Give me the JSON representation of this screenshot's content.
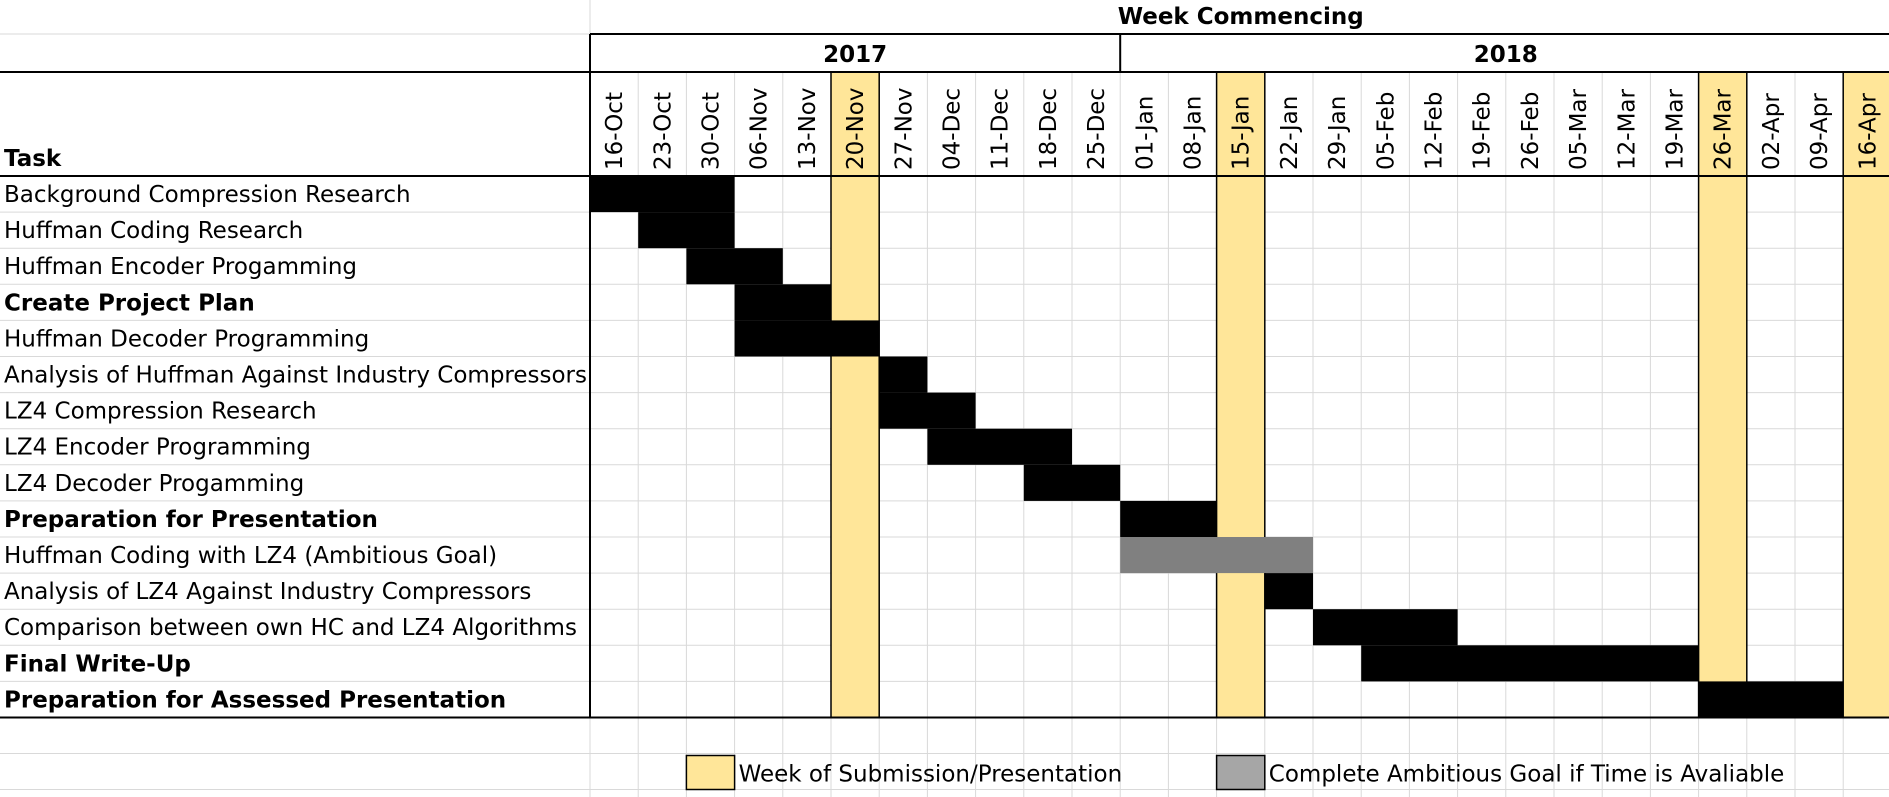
{
  "header": "Week Commencing",
  "task_header": "Task",
  "years": [
    {
      "label": "2017"
    },
    {
      "label": "2018"
    }
  ],
  "colors": {
    "task_bar": "#000000",
    "ambitious_bar": "#808080",
    "highlight": "#FFE699",
    "legend_ambitious": "#A6A6A6",
    "grid": "#d9d9d9"
  },
  "legend": [
    {
      "label": "Week of Submission/Presentation",
      "color": "#FFE699"
    },
    {
      "label": "Complete Ambitious Goal if Time is Avaliable",
      "color": "#A6A6A6"
    }
  ],
  "chart_data": {
    "type": "gantt",
    "weeks": [
      "16-Oct",
      "23-Oct",
      "30-Oct",
      "06-Nov",
      "13-Nov",
      "20-Nov",
      "27-Nov",
      "04-Dec",
      "11-Dec",
      "18-Dec",
      "25-Dec",
      "01-Jan",
      "08-Jan",
      "15-Jan",
      "22-Jan",
      "29-Jan",
      "05-Feb",
      "12-Feb",
      "19-Feb",
      "26-Feb",
      "05-Mar",
      "12-Mar",
      "19-Mar",
      "26-Mar",
      "02-Apr",
      "09-Apr",
      "16-Apr"
    ],
    "highlight_weeks": [
      "20-Nov",
      "15-Jan",
      "26-Mar",
      "16-Apr"
    ],
    "tasks": [
      {
        "name": "Background Compression Research",
        "start": "16-Oct",
        "end": "30-Oct",
        "bold": false,
        "kind": "task"
      },
      {
        "name": "Huffman Coding Research",
        "start": "23-Oct",
        "end": "30-Oct",
        "bold": false,
        "kind": "task"
      },
      {
        "name": "Huffman Encoder Progamming",
        "start": "30-Oct",
        "end": "06-Nov",
        "bold": false,
        "kind": "task"
      },
      {
        "name": "Create Project Plan",
        "start": "06-Nov",
        "end": "13-Nov",
        "bold": true,
        "kind": "task"
      },
      {
        "name": "Huffman Decoder Programming",
        "start": "06-Nov",
        "end": "20-Nov",
        "bold": false,
        "kind": "task"
      },
      {
        "name": "Analysis of Huffman Against Industry Compressors",
        "start": "27-Nov",
        "end": "27-Nov",
        "bold": false,
        "kind": "task"
      },
      {
        "name": "LZ4 Compression Research",
        "start": "27-Nov",
        "end": "04-Dec",
        "bold": false,
        "kind": "task"
      },
      {
        "name": "LZ4 Encoder Programming",
        "start": "04-Dec",
        "end": "18-Dec",
        "bold": false,
        "kind": "task"
      },
      {
        "name": "LZ4 Decoder Progamming",
        "start": "18-Dec",
        "end": "25-Dec",
        "bold": false,
        "kind": "task"
      },
      {
        "name": "Preparation for Presentation",
        "start": "01-Jan",
        "end": "08-Jan",
        "bold": true,
        "kind": "task"
      },
      {
        "name": "Huffman Coding with LZ4 (Ambitious Goal)",
        "start": "01-Jan",
        "end": "22-Jan",
        "bold": false,
        "kind": "ambitious"
      },
      {
        "name": "Analysis of LZ4 Against Industry Compressors",
        "start": "22-Jan",
        "end": "22-Jan",
        "bold": false,
        "kind": "task"
      },
      {
        "name": "Comparison between own HC and LZ4 Algorithms",
        "start": "29-Jan",
        "end": "12-Feb",
        "bold": false,
        "kind": "task"
      },
      {
        "name": "Final Write-Up",
        "start": "05-Feb",
        "end": "19-Mar",
        "bold": true,
        "kind": "task"
      },
      {
        "name": "Preparation for Assessed Presentation",
        "start": "26-Mar",
        "end": "09-Apr",
        "bold": true,
        "kind": "task"
      }
    ]
  }
}
